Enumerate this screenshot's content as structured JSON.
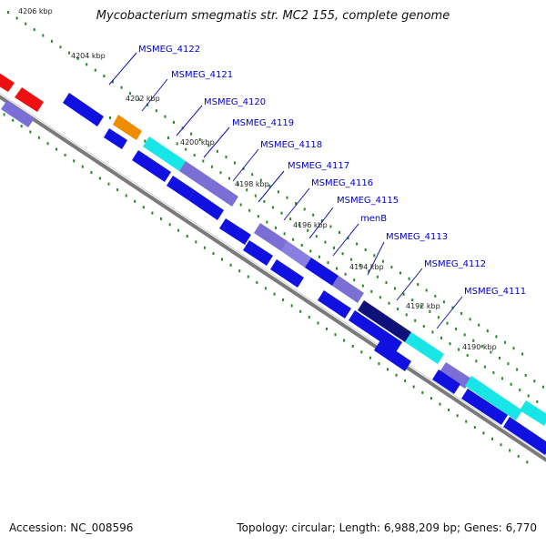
{
  "title": "Mycobacterium smegmatis str. MC2 155, complete genome",
  "footer": {
    "accession": "Accession: NC_008596",
    "summary": "Topology: circular; Length: 6,988,209 bp; Genes: 6,770"
  },
  "ticks": [
    "4206 kbp",
    "4204 kbp",
    "4202 kbp",
    "4200 kbp",
    "4198 kbp",
    "4196 kbp",
    "4194 kbp",
    "4192 kbp",
    "4190 kbp"
  ],
  "gene_labels": [
    "MSMEG_4122",
    "MSMEG_4121",
    "MSMEG_4120",
    "MSMEG_4119",
    "MSMEG_4118",
    "MSMEG_4117",
    "MSMEG_4116",
    "MSMEG_4115",
    "menB",
    "MSMEG_4113",
    "MSMEG_4112",
    "MSMEG_4111"
  ],
  "colors": {
    "cds_blue": "#1010e0",
    "cog_purple": "#7b6fd6",
    "cyan": "#18e6e6",
    "orange": "#f08c00",
    "red": "#ee1010",
    "navy": "#10107a",
    "tick_green": "#1e8c1e",
    "backbone": "#808080",
    "label_blue": "#0000cc"
  }
}
